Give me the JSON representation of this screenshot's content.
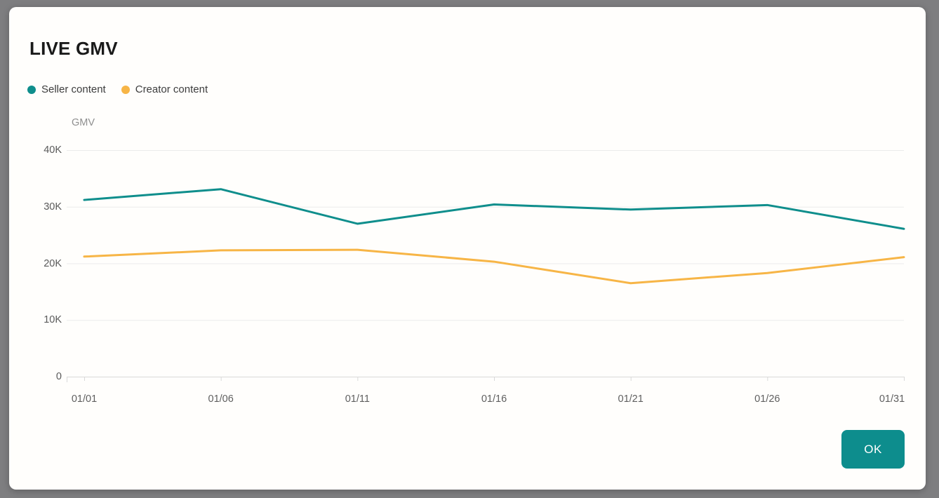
{
  "dialog": {
    "title": "LIVE GMV",
    "ok_label": "OK"
  },
  "colors": {
    "seller_line": "#0F8E8C",
    "creator_line": "#F7B546",
    "ok_button_bg": "#0D8D8D",
    "grid_line": "#ebebeb",
    "axis_line": "#d9d9d9",
    "card_bg": "#fffefc",
    "backdrop": "#7e7e80"
  },
  "chart_data": {
    "type": "line",
    "title": "LIVE GMV",
    "xlabel": "",
    "ylabel": "GMV",
    "categories": [
      "01/01",
      "01/06",
      "01/11",
      "01/16",
      "01/21",
      "01/26",
      "01/31"
    ],
    "series": [
      {
        "name": "Seller content",
        "color": "#0F8E8C",
        "values": [
          31200,
          33100,
          27000,
          30400,
          29500,
          30300,
          26100
        ]
      },
      {
        "name": "Creator content",
        "color": "#F7B546",
        "values": [
          21200,
          22300,
          22400,
          20300,
          16500,
          18300,
          21100
        ]
      }
    ],
    "y_ticks": [
      "40K",
      "30K",
      "20K",
      "10K",
      "0"
    ],
    "y_tick_values": [
      40000,
      30000,
      20000,
      10000,
      0
    ],
    "ylim": [
      0,
      40000
    ],
    "grid": true,
    "legend_position": "top-left"
  }
}
